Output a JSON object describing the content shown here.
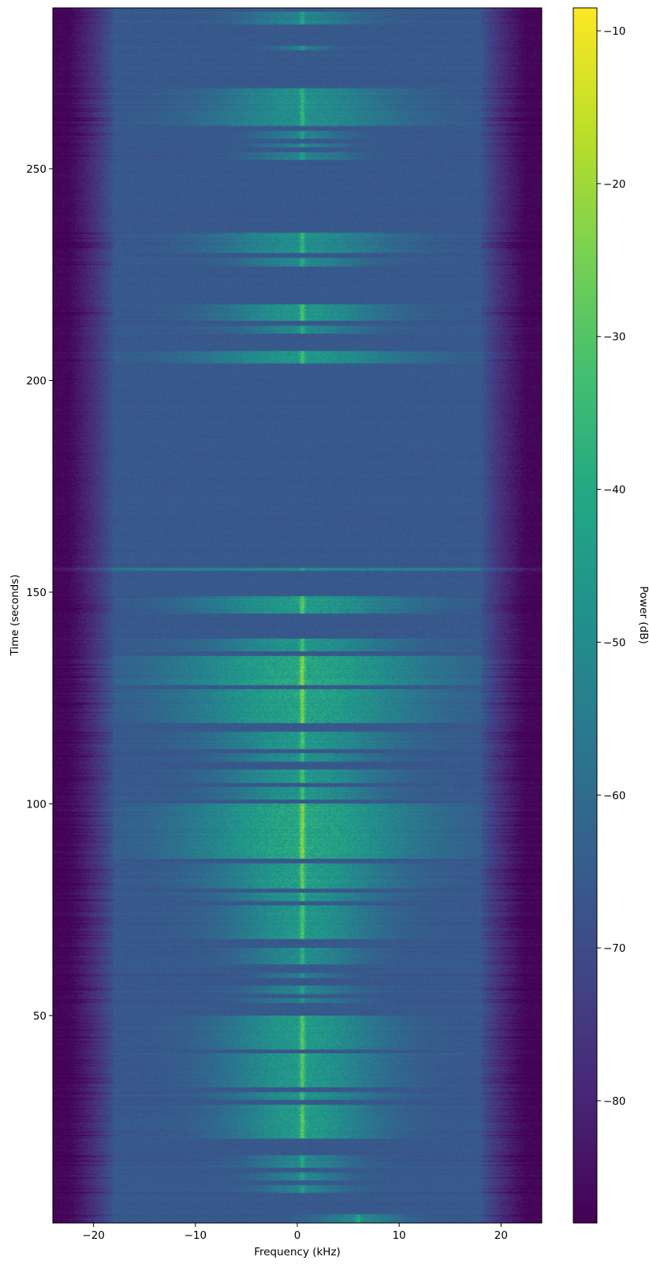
{
  "chart_data": {
    "type": "heatmap",
    "title": "",
    "xlabel": "Frequency (kHz)",
    "ylabel": "Time (seconds)",
    "colorbar_label": "Power (dB)",
    "xlim": [
      -24,
      24
    ],
    "ylim": [
      1,
      288
    ],
    "clim": [
      -88,
      -8.5
    ],
    "colormap": "viridis",
    "x_ticks": [
      -20,
      -10,
      0,
      10,
      20
    ],
    "x_tick_labels": [
      "−20",
      "−10",
      "0",
      "10",
      "20"
    ],
    "y_ticks": [
      50,
      100,
      150,
      200,
      250
    ],
    "y_tick_labels": [
      "50",
      "100",
      "150",
      "200",
      "250"
    ],
    "colorbar_ticks": [
      -10,
      -20,
      -30,
      -40,
      -50,
      -60,
      -70,
      -80
    ],
    "colorbar_tick_labels": [
      "−10",
      "−20",
      "−30",
      "−40",
      "−50",
      "−60",
      "−70",
      "−80"
    ],
    "noise_floor_db": -66,
    "edge_rolloff_db": -87,
    "rolloff_start_khz": 18,
    "carrier_freq_khz": 0.5,
    "activity_segments": [
      {
        "t": [
          1,
          3
        ],
        "strength": 0.6,
        "width_khz": 3,
        "center_khz": 6
      },
      {
        "t": [
          8,
          10
        ],
        "strength": 0.5,
        "width_khz": 3
      },
      {
        "t": [
          11,
          13
        ],
        "strength": 0.55,
        "width_khz": 3
      },
      {
        "t": [
          14,
          17
        ],
        "strength": 0.6,
        "width_khz": 3.5
      },
      {
        "t": [
          21,
          29
        ],
        "strength": 0.85,
        "width_khz": 5
      },
      {
        "t": [
          30,
          32
        ],
        "strength": 0.75,
        "width_khz": 5
      },
      {
        "t": [
          33,
          41
        ],
        "strength": 0.85,
        "width_khz": 5.5
      },
      {
        "t": [
          42,
          50
        ],
        "strength": 0.85,
        "width_khz": 5.5
      },
      {
        "t": [
          53,
          54
        ],
        "strength": 0.5,
        "width_khz": 4
      },
      {
        "t": [
          55,
          57
        ],
        "strength": 0.55,
        "width_khz": 3.5
      },
      {
        "t": [
          59,
          60
        ],
        "strength": 0.5,
        "width_khz": 3
      },
      {
        "t": [
          62,
          66
        ],
        "strength": 0.65,
        "width_khz": 4
      },
      {
        "t": [
          68,
          76
        ],
        "strength": 0.8,
        "width_khz": 5
      },
      {
        "t": [
          77,
          79
        ],
        "strength": 0.75,
        "width_khz": 5
      },
      {
        "t": [
          80,
          86
        ],
        "strength": 0.9,
        "width_khz": 6
      },
      {
        "t": [
          87,
          100
        ],
        "strength": 1.0,
        "width_khz": 8
      },
      {
        "t": [
          101,
          104
        ],
        "strength": 0.75,
        "width_khz": 5
      },
      {
        "t": [
          105,
          108
        ],
        "strength": 0.8,
        "width_khz": 5.5
      },
      {
        "t": [
          110,
          112
        ],
        "strength": 0.7,
        "width_khz": 5
      },
      {
        "t": [
          113,
          117
        ],
        "strength": 0.8,
        "width_khz": 6
      },
      {
        "t": [
          119,
          127
        ],
        "strength": 0.95,
        "width_khz": 8
      },
      {
        "t": [
          128,
          135
        ],
        "strength": 1.0,
        "width_khz": 9
      },
      {
        "t": [
          136,
          139
        ],
        "strength": 0.75,
        "width_khz": 6
      },
      {
        "t": [
          145,
          149
        ],
        "strength": 0.85,
        "width_khz": 7
      },
      {
        "t": [
          155,
          155.7
        ],
        "strength": 0.6,
        "width_khz": 20
      },
      {
        "t": [
          204,
          207
        ],
        "strength": 0.75,
        "width_khz": 7
      },
      {
        "t": [
          211,
          213
        ],
        "strength": 0.6,
        "width_khz": 4
      },
      {
        "t": [
          214,
          218
        ],
        "strength": 0.8,
        "width_khz": 5.5
      },
      {
        "t": [
          227,
          229
        ],
        "strength": 0.6,
        "width_khz": 4
      },
      {
        "t": [
          230,
          235
        ],
        "strength": 0.7,
        "width_khz": 6
      },
      {
        "t": [
          252,
          254
        ],
        "strength": 0.55,
        "width_khz": 3.5
      },
      {
        "t": [
          255,
          256
        ],
        "strength": 0.5,
        "width_khz": 3
      },
      {
        "t": [
          257,
          259
        ],
        "strength": 0.55,
        "width_khz": 3
      },
      {
        "t": [
          260,
          264
        ],
        "strength": 0.7,
        "width_khz": 7
      },
      {
        "t": [
          264,
          269
        ],
        "strength": 0.7,
        "width_khz": 6
      },
      {
        "t": [
          278,
          279
        ],
        "strength": 0.45,
        "width_khz": 2
      },
      {
        "t": [
          284,
          287
        ],
        "strength": 0.55,
        "width_khz": 4
      }
    ]
  }
}
